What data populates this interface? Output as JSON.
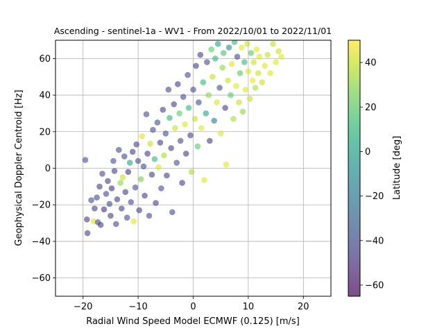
{
  "chart_data": {
    "type": "scatter",
    "title": "Ascending - sentinel-1a - WV1 - From 2022/10/01 to 2022/11/01",
    "xlabel": "Radial Wind Speed Model ECMWF (0.125) [m/s]",
    "ylabel": "Geophysical Doppler Centroid [Hz]",
    "xlim": [
      -25,
      25
    ],
    "ylim": [
      -70,
      70
    ],
    "xticks": [
      -20,
      -10,
      0,
      10,
      20
    ],
    "yticks": [
      -60,
      -40,
      -20,
      0,
      20,
      40,
      60
    ],
    "grid": true,
    "marker_alpha": 0.6,
    "colormap": "viridis",
    "colorbar": {
      "label": "Latitude [deg]",
      "range": [
        -65,
        50
      ],
      "ticks": [
        -60,
        -40,
        -20,
        0,
        20,
        40
      ]
    },
    "points": [
      {
        "x": -19.6,
        "y": 4.5,
        "c": -40
      },
      {
        "x": -19.2,
        "y": -35.5,
        "c": -42
      },
      {
        "x": -19.3,
        "y": -28.0,
        "c": -45
      },
      {
        "x": -18.5,
        "y": -17.5,
        "c": -38
      },
      {
        "x": -18.1,
        "y": -29.0,
        "c": 45
      },
      {
        "x": -17.9,
        "y": -22.0,
        "c": -45
      },
      {
        "x": -17.5,
        "y": -16.0,
        "c": -40
      },
      {
        "x": -17.0,
        "y": -10.0,
        "c": -45
      },
      {
        "x": -17.3,
        "y": -29.5,
        "c": -40
      },
      {
        "x": -16.8,
        "y": -31.0,
        "c": -45
      },
      {
        "x": -16.5,
        "y": -3.0,
        "c": -40
      },
      {
        "x": -16.2,
        "y": -22.5,
        "c": -50
      },
      {
        "x": -15.8,
        "y": -14.0,
        "c": -38
      },
      {
        "x": -15.5,
        "y": -7.0,
        "c": -45
      },
      {
        "x": -15.2,
        "y": -19.5,
        "c": -40
      },
      {
        "x": -15.0,
        "y": -26.0,
        "c": -45
      },
      {
        "x": -14.8,
        "y": -11.0,
        "c": -50
      },
      {
        "x": -14.5,
        "y": 4.0,
        "c": -38
      },
      {
        "x": -14.3,
        "y": -1.5,
        "c": -45
      },
      {
        "x": -14.0,
        "y": -30.5,
        "c": -40
      },
      {
        "x": -13.8,
        "y": -17.0,
        "c": -45
      },
      {
        "x": -13.5,
        "y": 10.0,
        "c": -40
      },
      {
        "x": -13.2,
        "y": -8.0,
        "c": 30
      },
      {
        "x": -13.0,
        "y": -22.0,
        "c": -45
      },
      {
        "x": -12.8,
        "y": -5.0,
        "c": 40
      },
      {
        "x": -12.5,
        "y": 6.5,
        "c": -40
      },
      {
        "x": -12.3,
        "y": -13.0,
        "c": -45
      },
      {
        "x": -12.0,
        "y": -27.0,
        "c": -40
      },
      {
        "x": -11.8,
        "y": -2.0,
        "c": -50
      },
      {
        "x": -11.5,
        "y": 3.0,
        "c": 0
      },
      {
        "x": -11.3,
        "y": -18.5,
        "c": -40
      },
      {
        "x": -11.0,
        "y": 9.0,
        "c": -45
      },
      {
        "x": -10.8,
        "y": -29.0,
        "c": 45
      },
      {
        "x": -10.5,
        "y": -10.5,
        "c": -40
      },
      {
        "x": -10.3,
        "y": 13.0,
        "c": -45
      },
      {
        "x": -10.0,
        "y": 4.0,
        "c": -40
      },
      {
        "x": -9.8,
        "y": -23.0,
        "c": -45
      },
      {
        "x": -9.5,
        "y": -6.0,
        "c": 25
      },
      {
        "x": -9.3,
        "y": 17.5,
        "c": 45
      },
      {
        "x": -9.0,
        "y": 1.0,
        "c": -40
      },
      {
        "x": -8.8,
        "y": -15.0,
        "c": -45
      },
      {
        "x": -8.5,
        "y": 29.5,
        "c": -40
      },
      {
        "x": -8.3,
        "y": 8.0,
        "c": -45
      },
      {
        "x": -8.0,
        "y": -26.0,
        "c": -40
      },
      {
        "x": -7.8,
        "y": 13.5,
        "c": 40
      },
      {
        "x": -7.5,
        "y": -3.5,
        "c": -45
      },
      {
        "x": -7.3,
        "y": 21.0,
        "c": -40
      },
      {
        "x": -7.0,
        "y": 5.0,
        "c": 10
      },
      {
        "x": -6.8,
        "y": -19.0,
        "c": -45
      },
      {
        "x": -6.5,
        "y": 25.0,
        "c": -40
      },
      {
        "x": -6.3,
        "y": 0.5,
        "c": 45
      },
      {
        "x": -6.0,
        "y": 14.0,
        "c": -45
      },
      {
        "x": -5.8,
        "y": -11.0,
        "c": -40
      },
      {
        "x": -5.5,
        "y": 32.0,
        "c": -45
      },
      {
        "x": -5.3,
        "y": 7.0,
        "c": 35
      },
      {
        "x": -5.0,
        "y": 19.0,
        "c": -40
      },
      {
        "x": -4.8,
        "y": -4.0,
        "c": -45
      },
      {
        "x": -4.5,
        "y": 43.0,
        "c": -40
      },
      {
        "x": -4.3,
        "y": 27.5,
        "c": 10
      },
      {
        "x": -4.0,
        "y": 11.0,
        "c": -45
      },
      {
        "x": -3.8,
        "y": -24.0,
        "c": -40
      },
      {
        "x": -3.5,
        "y": 35.0,
        "c": -45
      },
      {
        "x": -3.3,
        "y": 22.0,
        "c": 40
      },
      {
        "x": -3.0,
        "y": 3.0,
        "c": -40
      },
      {
        "x": -2.8,
        "y": 46.0,
        "c": -45
      },
      {
        "x": -2.5,
        "y": 30.0,
        "c": 20
      },
      {
        "x": -2.3,
        "y": 15.0,
        "c": -40
      },
      {
        "x": -2.0,
        "y": -8.0,
        "c": -45
      },
      {
        "x": -1.8,
        "y": 39.0,
        "c": -40
      },
      {
        "x": -1.5,
        "y": 24.0,
        "c": 45
      },
      {
        "x": -1.3,
        "y": 8.0,
        "c": -45
      },
      {
        "x": -1.0,
        "y": 51.0,
        "c": -40
      },
      {
        "x": -0.8,
        "y": 33.0,
        "c": 10
      },
      {
        "x": -0.5,
        "y": 18.0,
        "c": -45
      },
      {
        "x": -0.3,
        "y": -2.0,
        "c": 35
      },
      {
        "x": 0.0,
        "y": 43.0,
        "c": -40
      },
      {
        "x": 0.3,
        "y": 27.0,
        "c": 40
      },
      {
        "x": 0.5,
        "y": 56.0,
        "c": -45
      },
      {
        "x": 0.8,
        "y": 12.0,
        "c": 20
      },
      {
        "x": 1.0,
        "y": 36.0,
        "c": -40
      },
      {
        "x": 1.3,
        "y": 62.0,
        "c": -45
      },
      {
        "x": 1.5,
        "y": 22.0,
        "c": 45
      },
      {
        "x": 1.8,
        "y": 47.0,
        "c": 10
      },
      {
        "x": 2.0,
        "y": -6.5,
        "c": 45
      },
      {
        "x": 2.3,
        "y": 30.0,
        "c": 0
      },
      {
        "x": 2.5,
        "y": 58.0,
        "c": -40
      },
      {
        "x": 2.8,
        "y": 40.0,
        "c": 30
      },
      {
        "x": 3.0,
        "y": 15.0,
        "c": -45
      },
      {
        "x": 3.3,
        "y": 65.0,
        "c": 20
      },
      {
        "x": 3.5,
        "y": 50.0,
        "c": 40
      },
      {
        "x": 3.8,
        "y": 26.0,
        "c": -20
      },
      {
        "x": 4.0,
        "y": 60.0,
        "c": 10
      },
      {
        "x": 4.3,
        "y": 36.0,
        "c": 45
      },
      {
        "x": 4.5,
        "y": 68.0,
        "c": 0
      },
      {
        "x": 4.8,
        "y": 44.0,
        "c": -40
      },
      {
        "x": 5.0,
        "y": 19.0,
        "c": 45
      },
      {
        "x": 5.3,
        "y": 55.0,
        "c": 30
      },
      {
        "x": 5.5,
        "y": 63.0,
        "c": 15
      },
      {
        "x": 5.8,
        "y": 33.0,
        "c": -45
      },
      {
        "x": 6.0,
        "y": 2.0,
        "c": 45
      },
      {
        "x": 6.3,
        "y": 48.0,
        "c": 40
      },
      {
        "x": 6.5,
        "y": 66.0,
        "c": -10
      },
      {
        "x": 6.8,
        "y": 40.0,
        "c": 20
      },
      {
        "x": 7.0,
        "y": 57.0,
        "c": 45
      },
      {
        "x": 7.3,
        "y": 27.0,
        "c": 35
      },
      {
        "x": 7.5,
        "y": 69.0,
        "c": 10
      },
      {
        "x": 7.8,
        "y": 45.0,
        "c": 45
      },
      {
        "x": 8.0,
        "y": 61.0,
        "c": -40
      },
      {
        "x": 8.3,
        "y": 36.0,
        "c": 40
      },
      {
        "x": 8.5,
        "y": 52.0,
        "c": 20
      },
      {
        "x": 8.8,
        "y": 66.0,
        "c": 45
      },
      {
        "x": 9.0,
        "y": 31.0,
        "c": 30
      },
      {
        "x": 9.3,
        "y": 58.0,
        "c": 10
      },
      {
        "x": 9.5,
        "y": 43.0,
        "c": 45
      },
      {
        "x": 9.8,
        "y": 68.0,
        "c": 40
      },
      {
        "x": 10.0,
        "y": 53.0,
        "c": 45
      },
      {
        "x": 10.3,
        "y": 38.0,
        "c": 40
      },
      {
        "x": 10.5,
        "y": 63.0,
        "c": 20
      },
      {
        "x": 10.8,
        "y": 48.0,
        "c": 45
      },
      {
        "x": 11.0,
        "y": 58.0,
        "c": 40
      },
      {
        "x": 11.3,
        "y": 44.0,
        "c": 35
      },
      {
        "x": 11.5,
        "y": 65.0,
        "c": 45
      },
      {
        "x": 11.8,
        "y": 52.0,
        "c": 40
      },
      {
        "x": 12.0,
        "y": 61.0,
        "c": 45
      },
      {
        "x": 12.5,
        "y": 47.0,
        "c": 40
      },
      {
        "x": 13.0,
        "y": 56.0,
        "c": 45
      },
      {
        "x": 13.5,
        "y": 62.0,
        "c": 40
      },
      {
        "x": 14.0,
        "y": 52.0,
        "c": 45
      },
      {
        "x": 14.5,
        "y": 68.0,
        "c": 40
      },
      {
        "x": 15.0,
        "y": 58.0,
        "c": 45
      },
      {
        "x": 15.5,
        "y": 64.0,
        "c": 40
      },
      {
        "x": 16.0,
        "y": 61.0,
        "c": 45
      }
    ]
  }
}
